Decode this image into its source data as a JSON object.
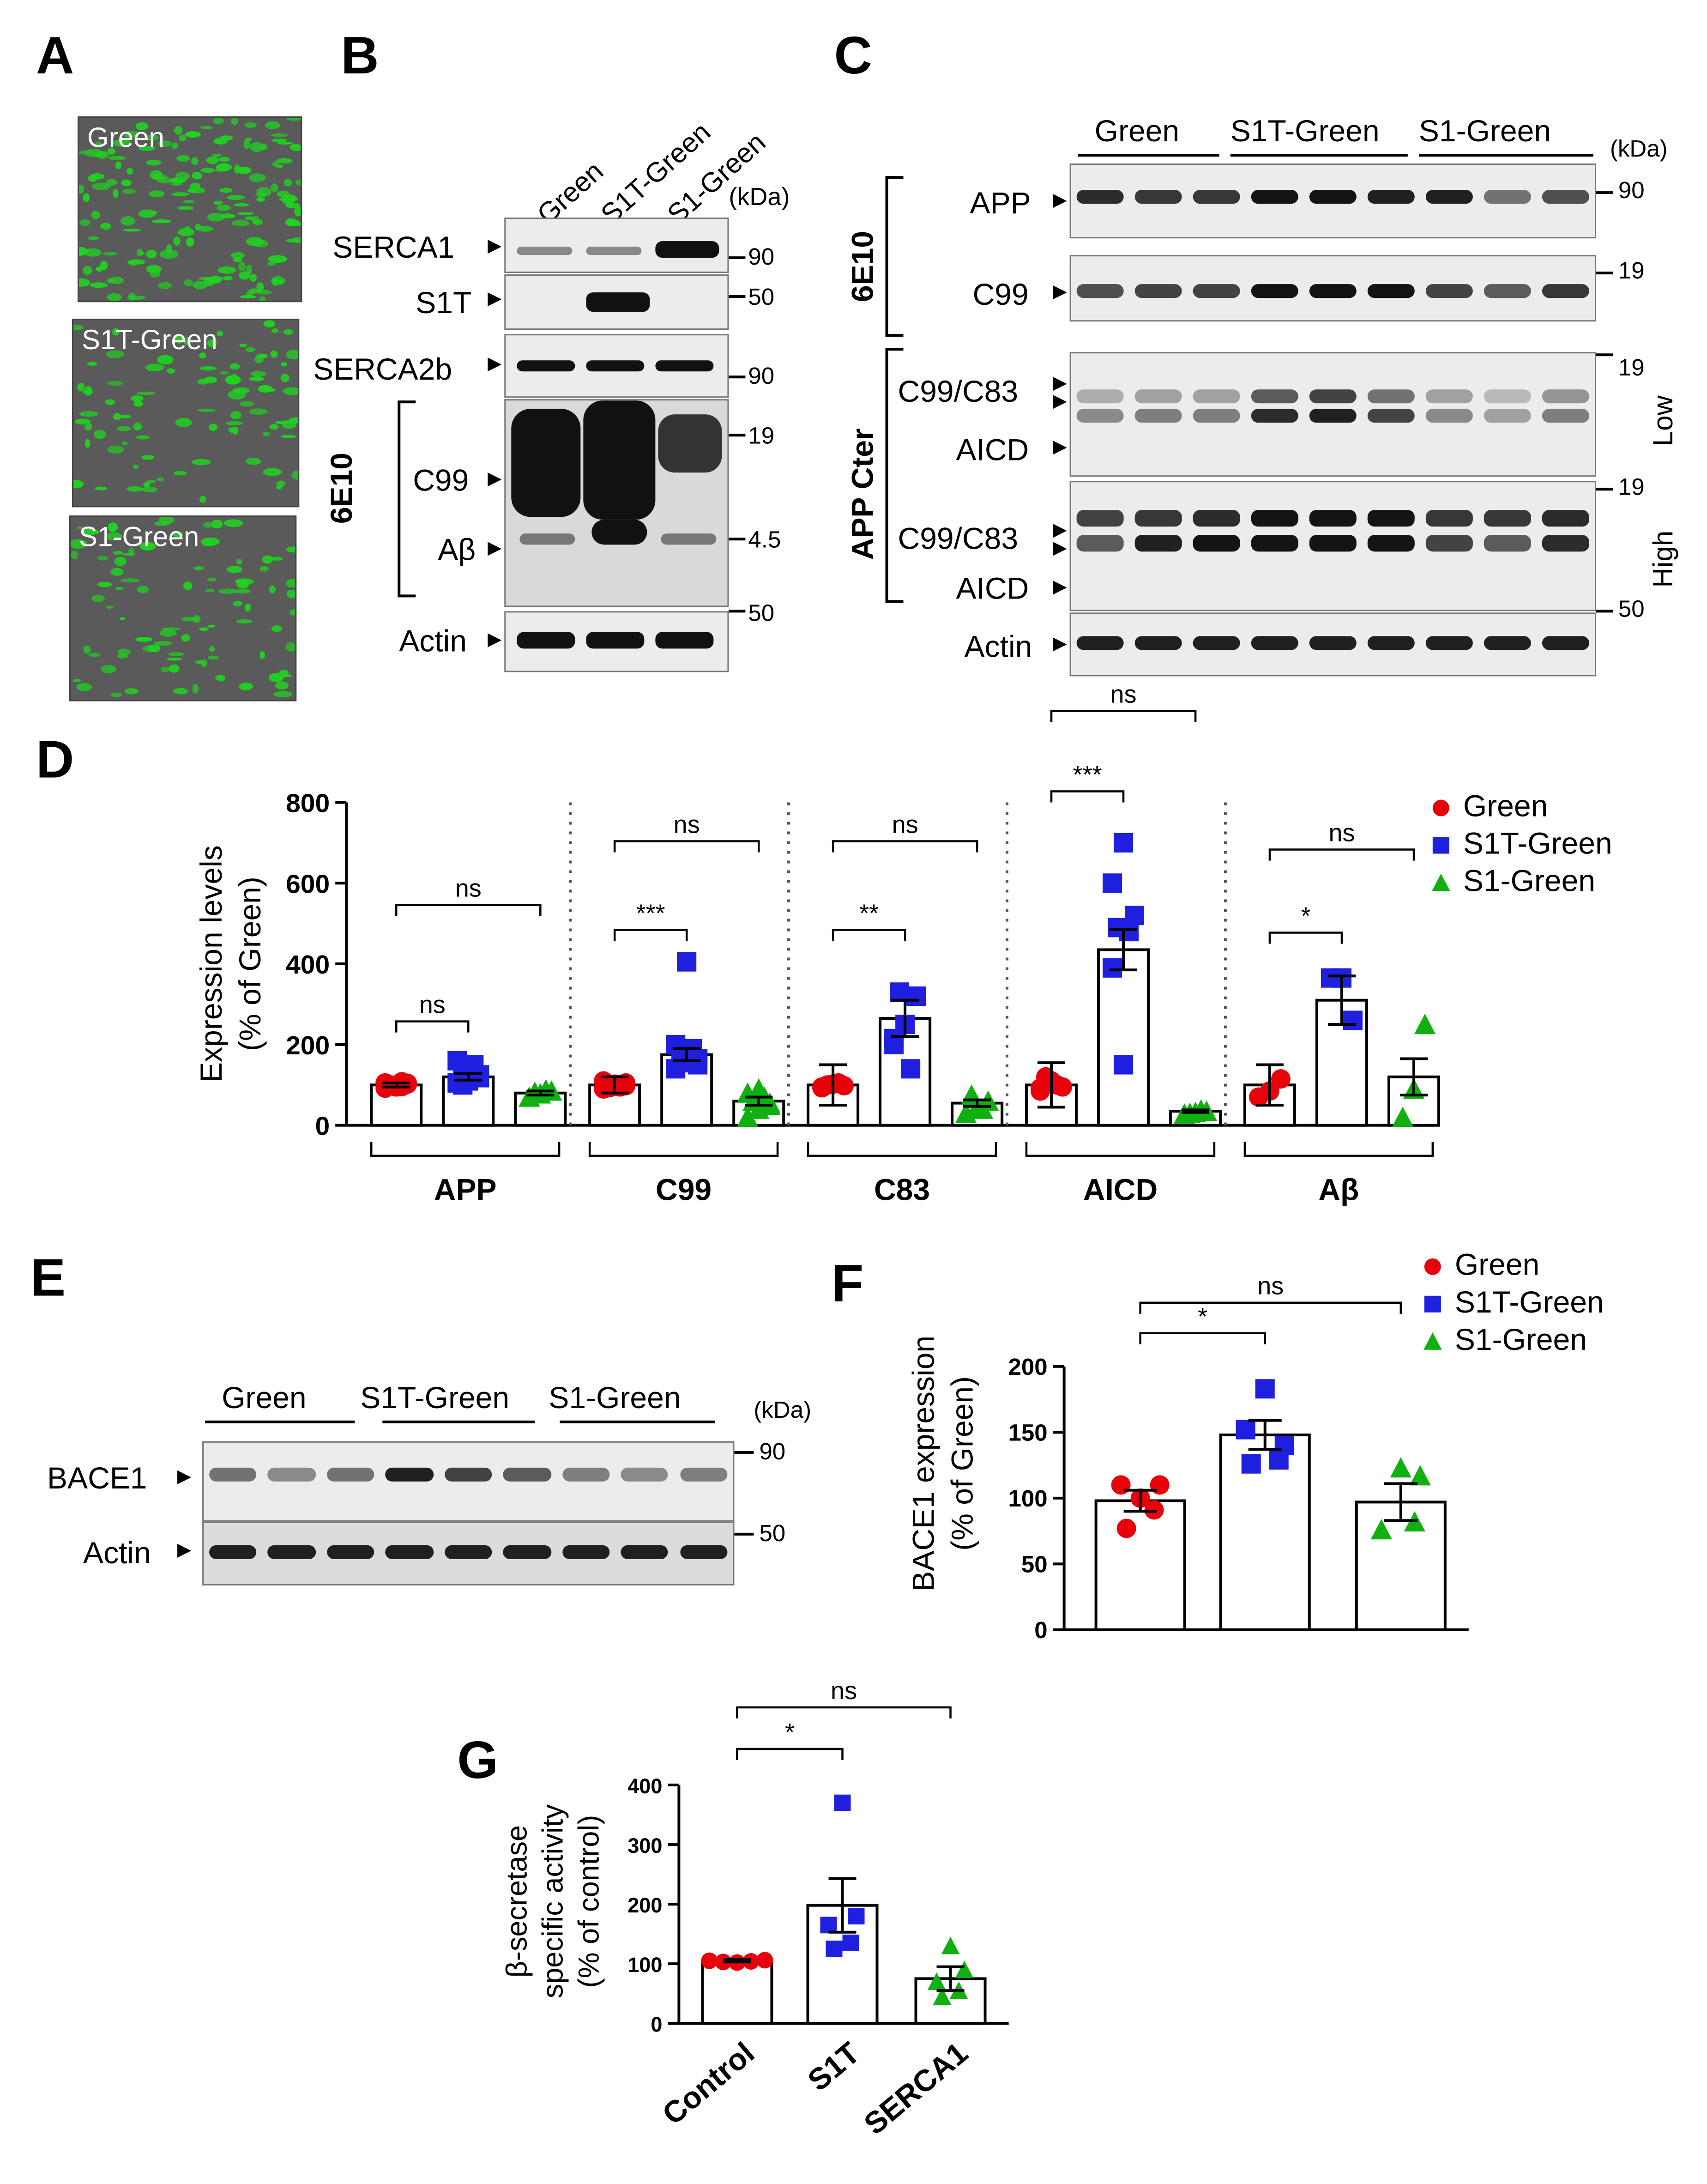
{
  "panels": {
    "A": {
      "letter": "A",
      "images": [
        "Green",
        "S1T-Green",
        "S1-Green"
      ]
    },
    "B": {
      "letter": "B",
      "lanes": [
        "Green",
        "S1T-Green",
        "S1-Green"
      ],
      "unit": "(kDa)",
      "rows": [
        "SERCA1",
        "S1T",
        "SERCA2b",
        "C99",
        "Aβ",
        "Actin"
      ],
      "antibody": "6E10",
      "markers": [
        "90",
        "50",
        "90",
        "19",
        "4.5",
        "50"
      ]
    },
    "C": {
      "letter": "C",
      "groups": [
        "Green",
        "S1T-Green",
        "S1-Green"
      ],
      "unit": "(kDa)",
      "rows": [
        "APP",
        "C99",
        "C99/C83",
        "AICD",
        "C99/C83",
        "AICD",
        "Actin"
      ],
      "antibodies": [
        "6E10",
        "APP Cter"
      ],
      "exposures": [
        "Low",
        "High"
      ],
      "markers": [
        "90",
        "19",
        "19",
        "19",
        "50"
      ]
    },
    "D": {
      "letter": "D",
      "ylabel_line1": "Expression levels",
      "ylabel_line2": "(% of Green)",
      "legend": [
        "Green",
        "S1T-Green",
        "S1-Green"
      ],
      "group_labels": [
        "APP",
        "C99",
        "C83",
        "AICD",
        "Aβ"
      ],
      "sig": [
        "ns",
        "ns",
        "***",
        "ns",
        "**",
        "ns",
        "***",
        "ns",
        "*",
        "ns"
      ]
    },
    "E": {
      "letter": "E",
      "groups": [
        "Green",
        "S1T-Green",
        "S1-Green"
      ],
      "unit": "(kDa)",
      "rows": [
        "BACE1",
        "Actin"
      ],
      "markers": [
        "90",
        "50"
      ]
    },
    "F": {
      "letter": "F",
      "ylabel_line1": "BACE1 expression",
      "ylabel_line2": "(% of Green)",
      "legend": [
        "Green",
        "S1T-Green",
        "S1-Green"
      ],
      "sig": [
        "*",
        "ns"
      ]
    },
    "G": {
      "letter": "G",
      "ylabel_line1": "β-secretase",
      "ylabel_line2": "specific activity",
      "ylabel_line3": "(% of control)",
      "categories": [
        "Control",
        "S1T",
        "SERCA1"
      ],
      "sig": [
        "*",
        "ns"
      ]
    }
  },
  "colors": {
    "green": "#e8000b",
    "s1t": "#1f1fe0",
    "s1": "#10b010"
  },
  "chart_data": [
    {
      "panel": "D",
      "type": "bar",
      "categories": [
        "APP",
        "C99",
        "C83",
        "AICD",
        "Aβ"
      ],
      "series": [
        {
          "name": "Green",
          "values": [
            100,
            100,
            100,
            100,
            100
          ],
          "points": [
            [
              92,
              98,
              104,
              100,
              96,
              105,
              95,
              102,
              99,
              108
            ],
            [
              90,
              97,
              105,
              100,
              95,
              110,
              102,
              98,
              93,
              101
            ],
            [
              95,
              102,
              98,
              100,
              105,
              93
            ],
            [
              85,
              105,
              95,
              120,
              100,
              92,
              110
            ],
            [
              70,
              85,
              115
            ]
          ]
        },
        {
          "name": "S1T-Green",
          "values": [
            120,
            175,
            265,
            435,
            310
          ],
          "points": [
            [
              105,
              115,
              125,
              130,
              140,
              160,
              110,
              118,
              100,
              150
            ],
            [
              140,
              155,
              165,
              170,
              180,
              200,
              405,
              150,
              160,
              190
            ],
            [
              215,
              250,
              320,
              330,
              140,
              200
            ],
            [
              600,
              700,
              520,
              490,
              480,
              390,
              150
            ],
            [
              365,
              365,
              260
            ]
          ]
        },
        {
          "name": "S1-Green",
          "values": [
            80,
            60,
            55,
            35,
            120
          ],
          "points": [
            [
              70,
              78,
              85,
              82,
              88
            ],
            [
              20,
              40,
              55,
              60,
              70,
              80,
              90,
              50
            ],
            [
              30,
              45,
              60,
              75,
              40
            ],
            [
              28,
              32,
              35,
              30,
              38
            ],
            [
              20,
              90,
              250
            ]
          ]
        }
      ],
      "errors": [
        [
          5,
          20,
          50,
          55,
          50
        ],
        [
          8,
          15,
          45,
          50,
          60
        ],
        [
          5,
          10,
          8,
          3,
          45
        ]
      ],
      "ylim": [
        0,
        800
      ],
      "yticks": [
        0,
        200,
        400,
        600,
        800
      ]
    },
    {
      "panel": "F",
      "type": "bar",
      "categories": [
        "Green",
        "S1T-Green",
        "S1-Green"
      ],
      "values": [
        98,
        148,
        97
      ],
      "errors": [
        8,
        11,
        14
      ],
      "points": [
        [
          100,
          110,
          110,
          91,
          77
        ],
        [
          183,
          140,
          152,
          129,
          126
        ],
        [
          123,
          117,
          76,
          82
        ]
      ],
      "ylim": [
        0,
        200
      ],
      "yticks": [
        0,
        50,
        100,
        150,
        200
      ]
    },
    {
      "panel": "G",
      "type": "bar",
      "categories": [
        "Control",
        "S1T",
        "SERCA1"
      ],
      "values": [
        105,
        198,
        75
      ],
      "errors": [
        2,
        45,
        20
      ],
      "points": [
        [
          105,
          103,
          102,
          104,
          106
        ],
        [
          370,
          180,
          165,
          135,
          125
        ],
        [
          130,
          90,
          70,
          55,
          45
        ]
      ],
      "ylim": [
        0,
        400
      ],
      "yticks": [
        0,
        100,
        200,
        300,
        400
      ]
    }
  ]
}
